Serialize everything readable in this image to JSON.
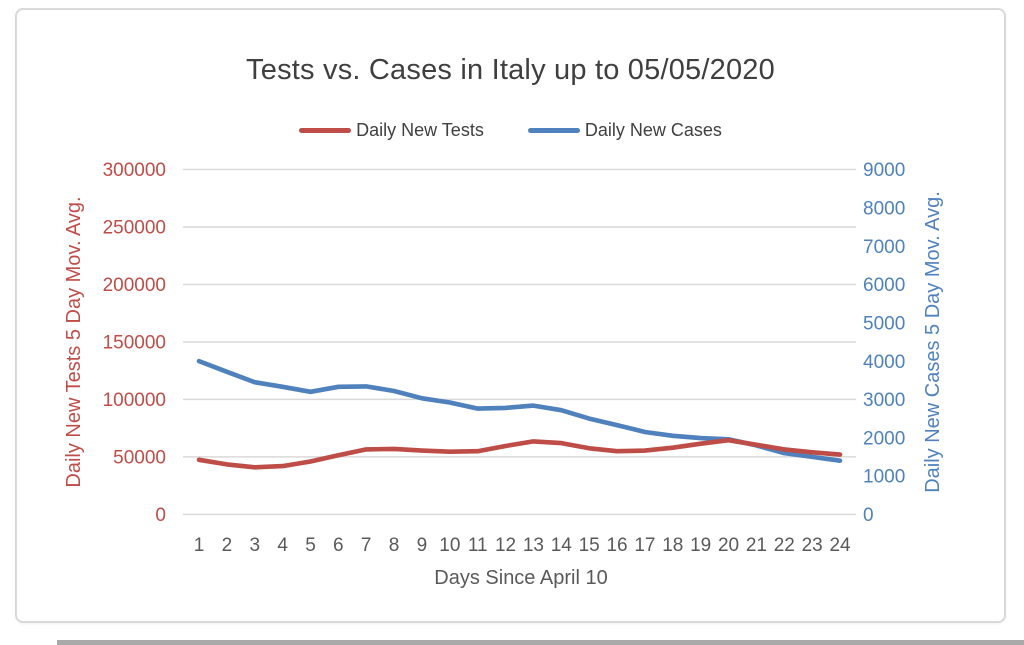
{
  "chart_data": {
    "type": "line",
    "title": "Tests vs. Cases in Italy up to 05/05/2020",
    "xlabel": "Days Since April 10",
    "x": [
      1,
      2,
      3,
      4,
      5,
      6,
      7,
      8,
      9,
      10,
      11,
      12,
      13,
      14,
      15,
      16,
      17,
      18,
      19,
      20,
      21,
      22,
      23,
      24
    ],
    "series": [
      {
        "name": "Daily New Tests",
        "axis": "left",
        "color": "#be4c47",
        "values": [
          47500,
          43500,
          41000,
          42000,
          46000,
          51500,
          56500,
          57000,
          55500,
          54500,
          55000,
          59500,
          63500,
          62000,
          57500,
          55000,
          55500,
          58000,
          61500,
          64500,
          60500,
          56500,
          54000,
          52000
        ]
      },
      {
        "name": "Daily New Cases",
        "axis": "right",
        "color": "#4f81bd",
        "values": [
          4000,
          3720,
          3450,
          3330,
          3200,
          3330,
          3340,
          3220,
          3030,
          2920,
          2760,
          2780,
          2840,
          2720,
          2500,
          2330,
          2150,
          2050,
          1990,
          1960,
          1800,
          1600,
          1500,
          1400
        ]
      }
    ],
    "axes": {
      "left": {
        "title": "Daily New Tests 5 Day Mov. Avg.",
        "min": 0,
        "max": 300000,
        "tick_step": 50000,
        "color": "#be4c47"
      },
      "right": {
        "title": "Daily New Cases 5 Day Mov. Avg.",
        "min": 0,
        "max": 9000,
        "tick_step": 1000,
        "color": "#4f81bd"
      },
      "x": {
        "title": "Days Since April 10",
        "color": "#595959"
      }
    },
    "grid": true,
    "gridline_color": "#d9d9d9",
    "legend_position": "top",
    "title_color": "#3f3f3f"
  }
}
